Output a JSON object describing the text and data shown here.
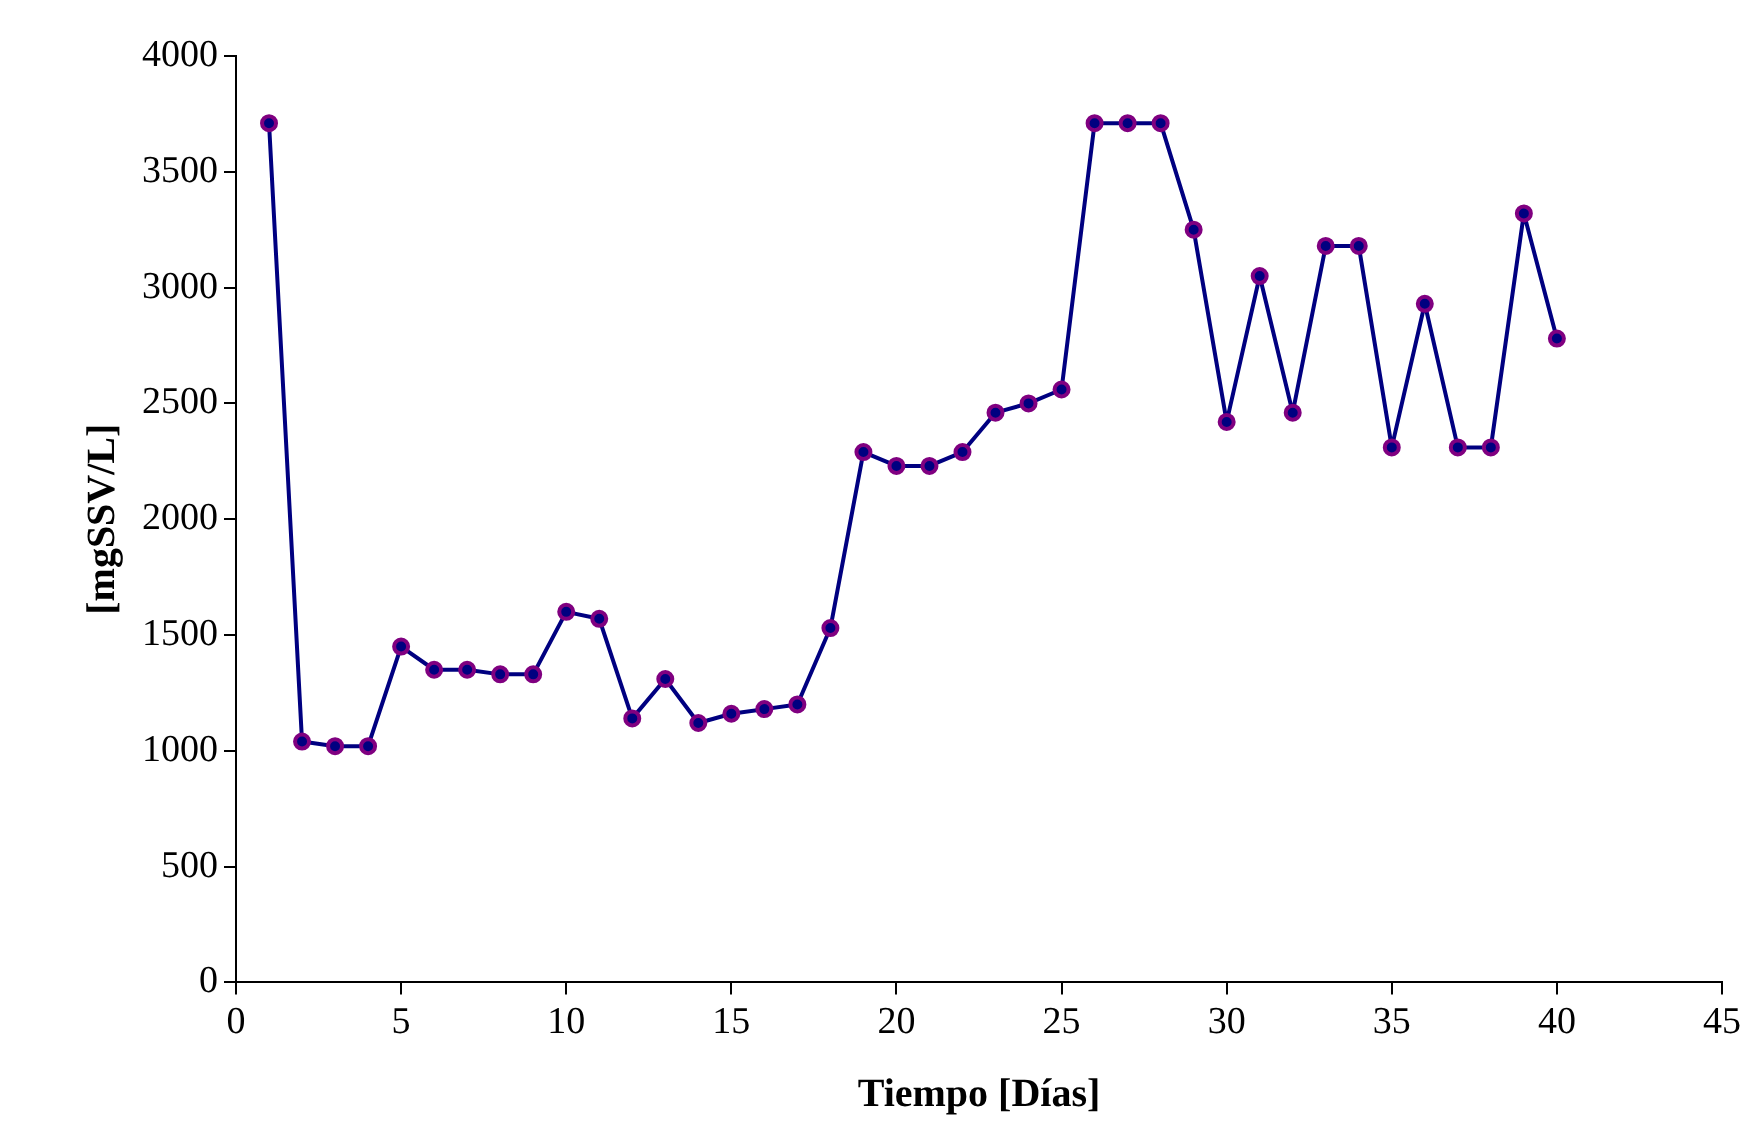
{
  "chart_data": {
    "type": "line",
    "xlabel": "Tiempo [Días]",
    "ylabel": "[mgSSV/L]",
    "x": [
      1,
      2,
      3,
      4,
      5,
      6,
      7,
      8,
      9,
      10,
      11,
      12,
      13,
      14,
      15,
      16,
      17,
      18,
      19,
      20,
      21,
      22,
      23,
      24,
      25,
      26,
      27,
      28,
      29,
      30,
      31,
      32,
      33,
      34,
      35,
      36,
      37,
      38,
      39,
      40
    ],
    "series": [
      {
        "color": "#000080",
        "values": [
          3710,
          1040,
          1020,
          1020,
          1450,
          1350,
          1350,
          1330,
          1330,
          1600,
          1570,
          1140,
          1310,
          1120,
          1160,
          1180,
          1200,
          1530,
          2290,
          2230,
          2230,
          2290,
          2460,
          2500,
          2560,
          3710,
          3710,
          3710,
          3250,
          2420,
          3050,
          2460,
          3180,
          3180,
          2310,
          2930,
          2310,
          2310,
          3320,
          2780
        ]
      }
    ],
    "marker": "circle",
    "line_style": "solid",
    "grid": false,
    "legend": false,
    "xlim": [
      0,
      45
    ],
    "xticks": [
      0,
      5,
      10,
      15,
      20,
      25,
      30,
      35,
      40,
      45
    ],
    "ylim": [
      0,
      4000
    ],
    "yticks": [
      0,
      500,
      1000,
      1500,
      2000,
      2500,
      3000,
      3500,
      4000
    ]
  }
}
